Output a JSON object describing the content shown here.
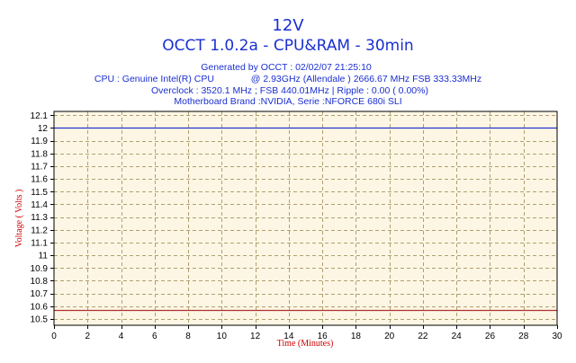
{
  "header": {
    "title": "12V",
    "subtitle": "OCCT 1.0.2a - CPU&RAM -  30min",
    "info_lines": [
      "Generated by OCCT : 02/02/07 21:25:10",
      "CPU : Genuine Intel(R) CPU              @ 2.93GHz (Allendale ) 2666.67 MHz FSB 333.33MHz",
      "Overclock : 3520.1 MHz ; FSB 440.01MHz | Ripple : 0.00 ( 0.00%)",
      "Motherboard Brand :NVIDIA, Serie :NFORCE 680i SLI"
    ]
  },
  "colors": {
    "text": "#1a2fd0",
    "plot_background": "#fdf6e4",
    "grid": "#b0a070",
    "series_voltage": "#2233cc",
    "series_reference": "#b03030",
    "axis_label": "#cc0000"
  },
  "chart_data": {
    "type": "line",
    "title": "12V",
    "subtitle": "OCCT 1.0.2a - CPU&RAM -  30min",
    "xlabel": "Time (Minutes)",
    "ylabel": "Voltage ( Volts )",
    "xlim": [
      0,
      30
    ],
    "ylim": [
      10.45,
      12.13
    ],
    "grid": true,
    "x_ticks": [
      0,
      2,
      4,
      6,
      8,
      10,
      12,
      14,
      16,
      18,
      20,
      22,
      24,
      26,
      28,
      30
    ],
    "x_tick_labels": [
      "0",
      "2",
      "4",
      "6",
      "8",
      "10",
      "12",
      "14",
      "16",
      "18",
      "20",
      "22",
      "24",
      "26",
      "28",
      "30"
    ],
    "y_ticks": [
      10.5,
      10.6,
      10.7,
      10.8,
      10.9,
      11,
      11.1,
      11.2,
      11.3,
      11.4,
      11.5,
      11.6,
      11.7,
      11.8,
      11.9,
      12,
      12.1
    ],
    "y_tick_labels": [
      "10.5",
      "10.6",
      "10.7",
      "10.8",
      "10.9",
      "11",
      "11.1",
      "11.2",
      "11.3",
      "11.4",
      "11.5",
      "11.6",
      "11.7",
      "11.8",
      "11.9",
      "12",
      "12.1"
    ],
    "series": [
      {
        "x": [
          0,
          30
        ],
        "values": [
          12.0,
          12.0
        ],
        "color": "#2233cc"
      },
      {
        "x": [
          0,
          30
        ],
        "values": [
          10.57,
          10.57
        ],
        "color": "#b03030"
      }
    ]
  }
}
